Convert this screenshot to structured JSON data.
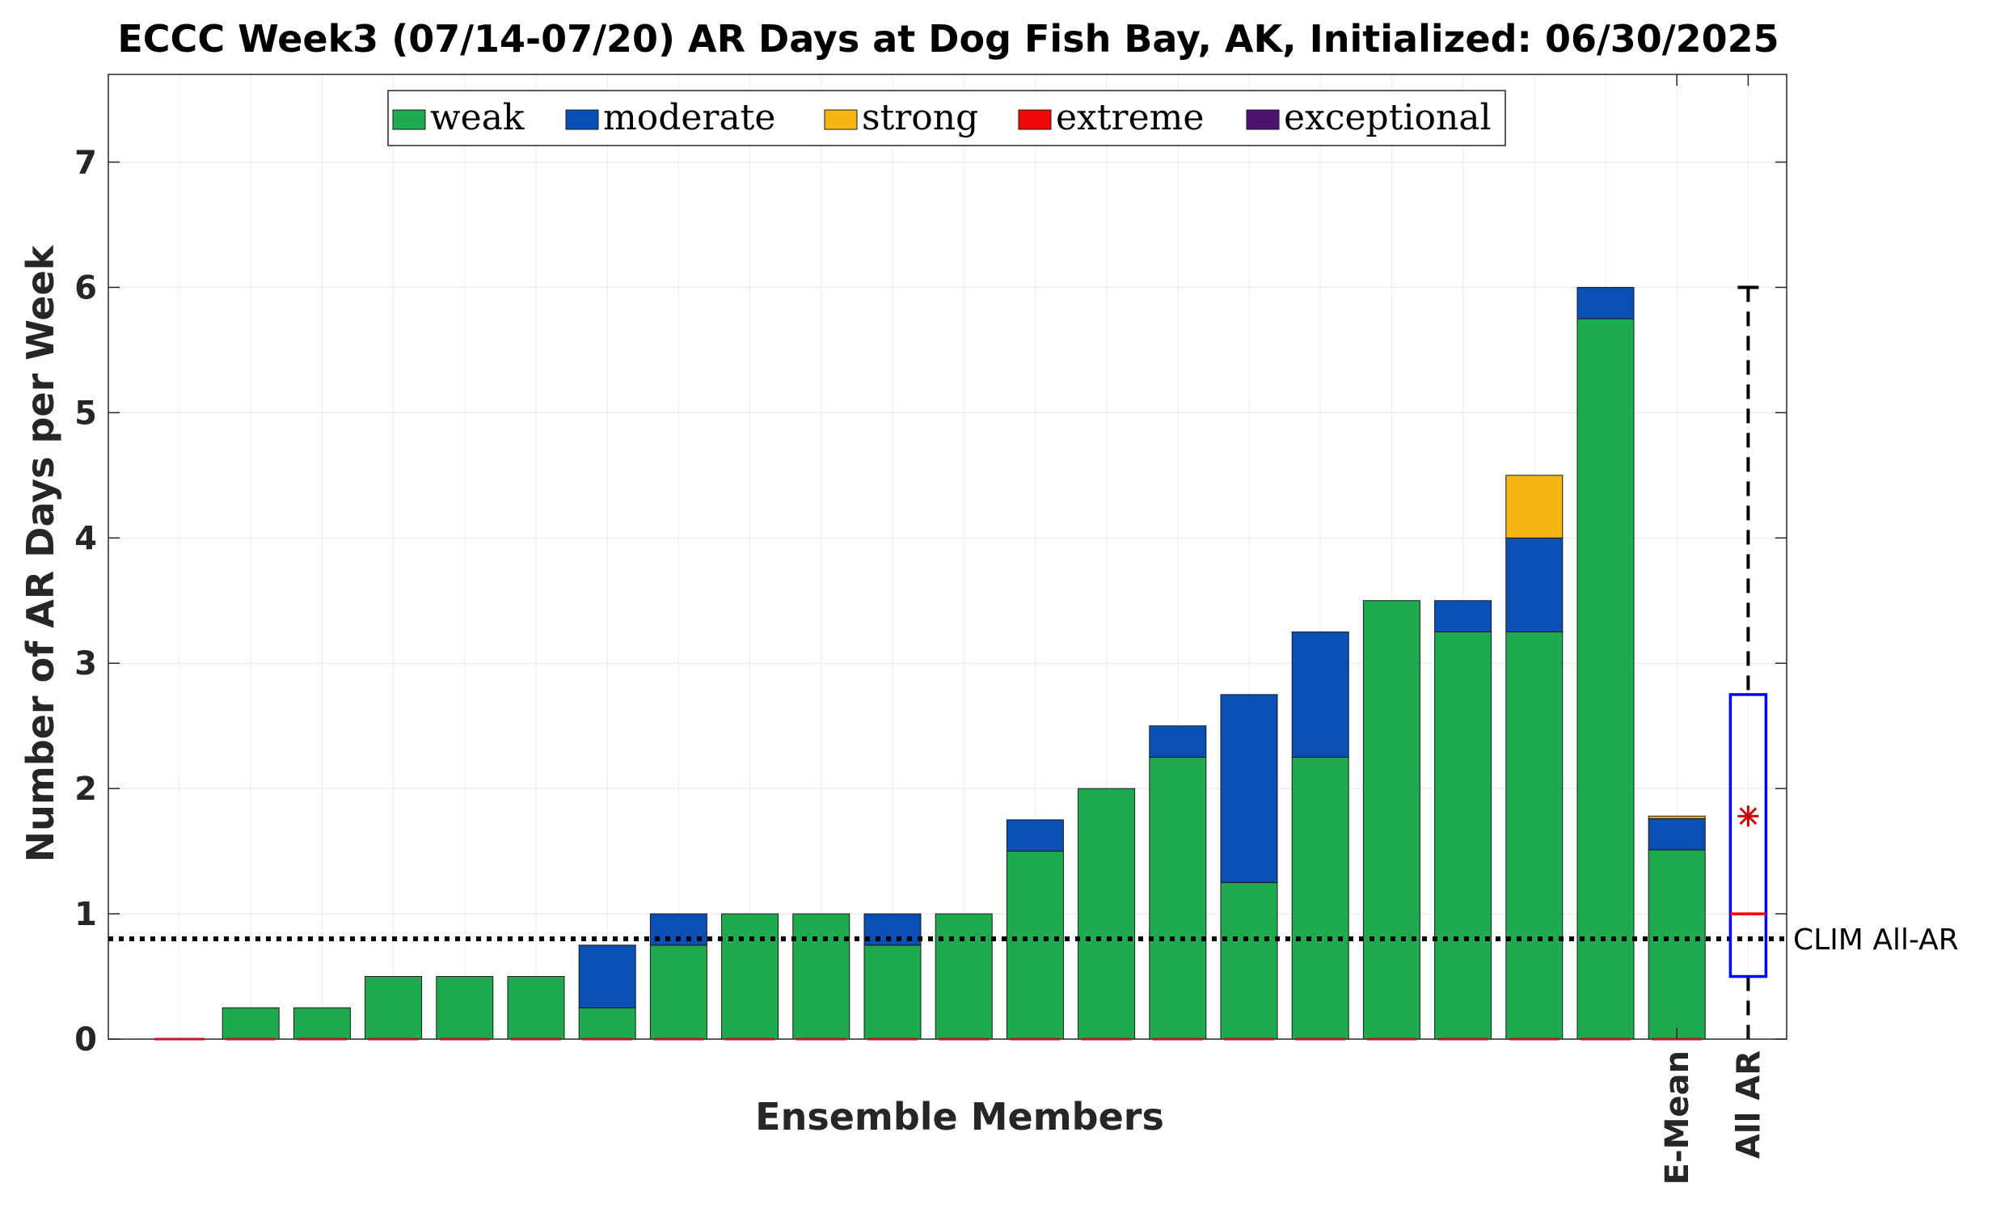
{
  "chart_data": {
    "type": "bar",
    "stacked": true,
    "title": "ECCC Week3 (07/14-07/20) AR Days at Dog Fish Bay, AK, Initialized: 06/30/2025",
    "xlabel": "Ensemble Members",
    "ylabel": "Number of AR Days per Week",
    "ylim": [
      0,
      7.7
    ],
    "yticks": [
      0,
      1,
      2,
      3,
      4,
      5,
      6,
      7
    ],
    "grid": true,
    "legend_position": "top-center",
    "extra_category_labels": [
      "E-Mean",
      "All AR"
    ],
    "series": [
      {
        "name": "weak",
        "color": "#1faa50",
        "values": [
          0,
          0.25,
          0.25,
          0.5,
          0.5,
          0.5,
          0.25,
          0.75,
          1,
          1,
          0.75,
          1,
          1.5,
          2,
          2.25,
          1.25,
          2.25,
          3.5,
          3.25,
          3.25,
          5.75,
          1.51
        ]
      },
      {
        "name": "moderate",
        "color": "#0b4fb5",
        "values": [
          0,
          0,
          0,
          0,
          0,
          0,
          0.5,
          0.25,
          0,
          0,
          0.25,
          0,
          0.25,
          0,
          0.25,
          1.5,
          1,
          0,
          0.25,
          0.75,
          0.25,
          0.25
        ]
      },
      {
        "name": "strong",
        "color": "#f7b515",
        "values": [
          0,
          0,
          0,
          0,
          0,
          0,
          0,
          0,
          0,
          0,
          0,
          0,
          0,
          0,
          0,
          0,
          0,
          0,
          0,
          0.5,
          0,
          0.02
        ]
      },
      {
        "name": "extreme",
        "color": "#ee0a0a",
        "values": [
          0,
          0,
          0,
          0,
          0,
          0,
          0,
          0,
          0,
          0,
          0,
          0,
          0,
          0,
          0,
          0,
          0,
          0,
          0,
          0,
          0,
          0
        ]
      },
      {
        "name": "exceptional",
        "color": "#4b136e",
        "values": [
          0,
          0,
          0,
          0,
          0,
          0,
          0,
          0,
          0,
          0,
          0,
          0,
          0,
          0,
          0,
          0,
          0,
          0,
          0,
          0,
          0,
          0
        ]
      }
    ],
    "boxplot": {
      "label": "All AR",
      "min": 0,
      "q1": 0.5,
      "median": 1,
      "q3": 2.75,
      "max": 6,
      "mean": 1.78,
      "box_color": "#0000ff",
      "median_color": "#ff0000",
      "mean_color": "#cc0000"
    },
    "reference_line": {
      "label": "CLIM All-AR",
      "value": 0.8
    }
  }
}
